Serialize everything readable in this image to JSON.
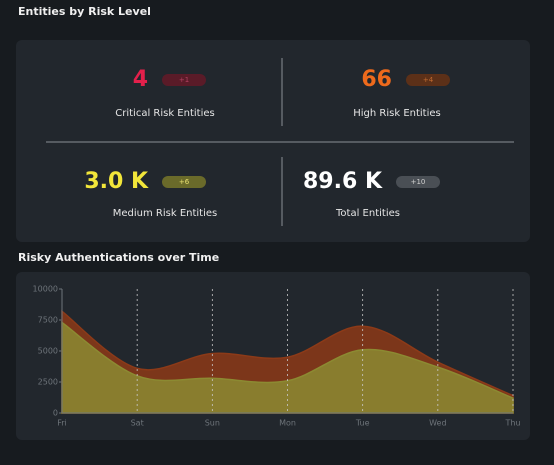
{
  "header": {
    "title": "Entities by Risk Level"
  },
  "kpis": [
    {
      "value": "4",
      "delta": "+1",
      "label": "Critical Risk Entities",
      "color": "#e3204b",
      "badge": "#5a1b28",
      "badge_text": "#b04060"
    },
    {
      "value": "66",
      "delta": "+4",
      "label": "High Risk Entities",
      "color": "#ee6a1c",
      "badge": "#5c3018",
      "badge_text": "#c06a30"
    },
    {
      "value": "3.0 K",
      "delta": "+6",
      "label": "Medium Risk Entities",
      "color": "#f2e63a",
      "badge": "#6a6a2a",
      "badge_text": "#e8e070"
    },
    {
      "value": "89.6 K",
      "delta": "+10",
      "label": "Total Entities",
      "color": "#ffffff",
      "badge": "#4a4f55",
      "badge_text": "#d0d0d0"
    }
  ],
  "chart_data": {
    "type": "area",
    "title": "Risky Authentications over Time",
    "categories": [
      "Fri",
      "Sat",
      "Sun",
      "Mon",
      "Tue",
      "Wed",
      "Thu"
    ],
    "series": [
      {
        "color": "#8c3a18",
        "values": [
          8200,
          3600,
          4800,
          4500,
          7000,
          4100,
          1400
        ]
      },
      {
        "color": "#8c8a32",
        "values": [
          7300,
          3000,
          2800,
          2600,
          5100,
          3700,
          1200
        ]
      }
    ],
    "ylim": [
      0,
      10000
    ],
    "yticks": [
      0,
      2500,
      5000,
      7500,
      10000
    ],
    "grid": true
  }
}
